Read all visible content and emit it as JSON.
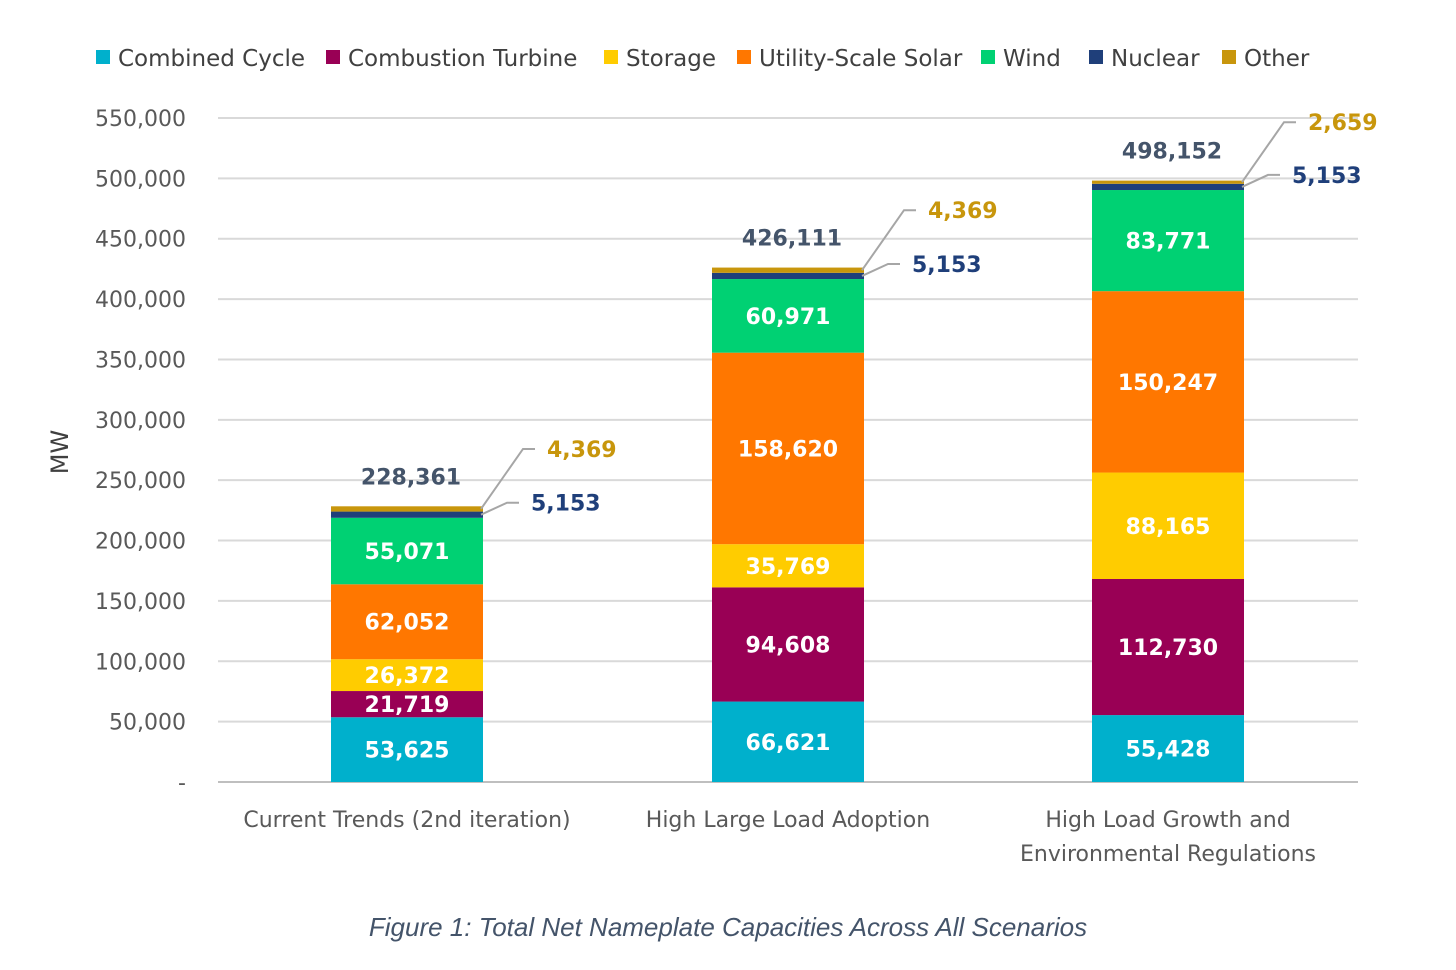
{
  "caption": "Figure 1: Total Net Nameplate Capacities Across All Scenarios",
  "chart_data": {
    "type": "bar",
    "stacked": true,
    "categories": [
      [
        "Current Trends (2nd iteration)"
      ],
      [
        "High Large Load Adoption"
      ],
      [
        "High Load Growth and",
        "Environmental Regulations"
      ]
    ],
    "ylabel": "MW",
    "ylim": [
      0,
      550000
    ],
    "yticks": [
      0,
      50000,
      100000,
      150000,
      200000,
      250000,
      300000,
      350000,
      400000,
      450000,
      500000,
      550000
    ],
    "ytick_labels": [
      "-",
      "50,000",
      "100,000",
      "150,000",
      "200,000",
      "250,000",
      "300,000",
      "350,000",
      "400,000",
      "450,000",
      "500,000",
      "550,000"
    ],
    "grid": true,
    "legend_position": "top",
    "series": [
      {
        "name": "Combined Cycle",
        "color": "#00B0CC",
        "values": [
          53625,
          66621,
          55428
        ],
        "labels": [
          "53,625",
          "66,621",
          "55,428"
        ],
        "label_mode": "inside"
      },
      {
        "name": "Combustion Turbine",
        "color": "#990055",
        "values": [
          21719,
          94608,
          112730
        ],
        "labels": [
          "21,719",
          "94,608",
          "112,730"
        ],
        "label_mode": "inside"
      },
      {
        "name": "Storage",
        "color": "#FFCC00",
        "values": [
          26372,
          35769,
          88165
        ],
        "labels": [
          "26,372",
          "35,769",
          "88,165"
        ],
        "label_mode": "inside"
      },
      {
        "name": "Utility-Scale Solar",
        "color": "#FF7700",
        "values": [
          62052,
          158620,
          150247
        ],
        "labels": [
          "62,052",
          "158,620",
          "150,247"
        ],
        "label_mode": "inside"
      },
      {
        "name": "Wind",
        "color": "#00D173",
        "values": [
          55071,
          60971,
          83771
        ],
        "labels": [
          "55,071",
          "60,971",
          "83,771"
        ],
        "label_mode": "inside"
      },
      {
        "name": "Nuclear",
        "color": "#1F3F7A",
        "label_color": "#1F3F7A",
        "values": [
          5153,
          5153,
          5153
        ],
        "labels": [
          "5,153",
          "5,153",
          "5,153"
        ],
        "label_mode": "callout"
      },
      {
        "name": "Other",
        "color": "#C8960C",
        "label_color": "#C8960C",
        "values": [
          4369,
          4369,
          2659
        ],
        "labels": [
          "4,369",
          "4,369",
          "2,659"
        ],
        "label_mode": "callout"
      }
    ],
    "totals": [
      228361,
      426111,
      498152
    ],
    "total_labels": [
      "228,361",
      "426,111",
      "498,152"
    ]
  }
}
